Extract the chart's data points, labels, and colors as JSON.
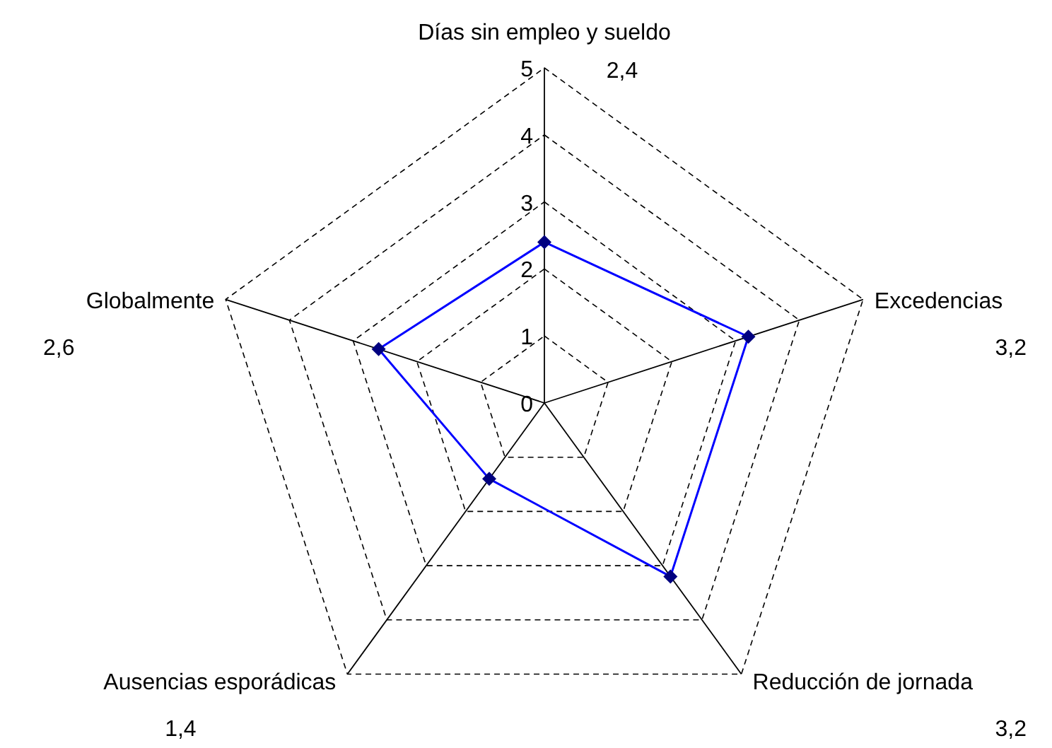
{
  "chart_data": {
    "type": "radar",
    "categories": [
      "Días sin empleo y sueldo",
      "Excedencias",
      "Reducción de jornada",
      "Ausencias esporádicas",
      "Globalmente"
    ],
    "series": [
      {
        "color": "#0000ff",
        "values": [
          2.4,
          3.2,
          3.2,
          1.4,
          2.6
        ]
      }
    ],
    "annotations": [
      "2,4",
      "3,2",
      "3,2",
      "1,4",
      "2,6"
    ],
    "ylim": [
      0,
      5
    ],
    "yticks": [
      0,
      1,
      2,
      3,
      4,
      5
    ],
    "grid": true,
    "marker": "diamond",
    "line_style": "solid"
  }
}
